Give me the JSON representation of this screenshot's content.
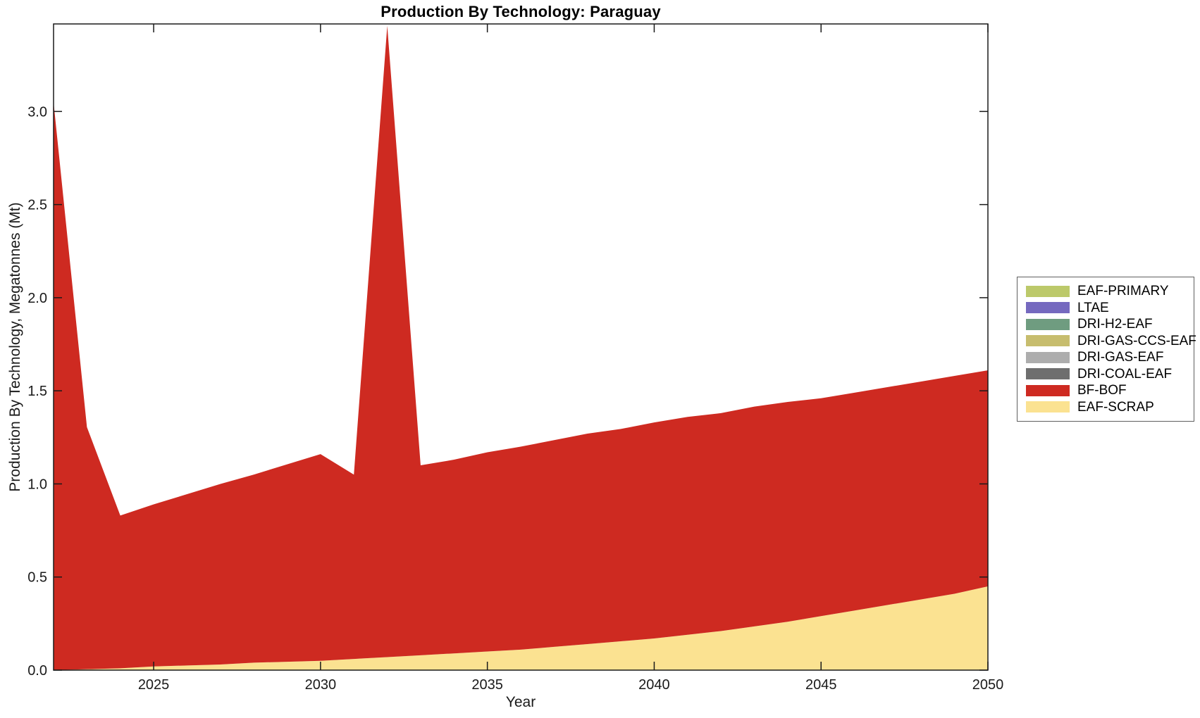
{
  "chart_data": {
    "type": "area",
    "stacked": true,
    "title": "Production By Technology: Paraguay",
    "xlabel": "Year",
    "ylabel": "Production By Technology, Megatonnes (Mt)",
    "grid": false,
    "legend_position": "outside-right",
    "xlim": [
      2022,
      2050
    ],
    "ylim": [
      0,
      3.47
    ],
    "x_ticks": [
      2025,
      2030,
      2035,
      2040,
      2045,
      2050
    ],
    "x_tick_labels": [
      "2025",
      "2030",
      "2035",
      "2040",
      "2045",
      "2050"
    ],
    "y_ticks": [
      0,
      0.5,
      1.0,
      1.5,
      2.0,
      2.5,
      3.0
    ],
    "y_tick_labels": [
      "0.0",
      "0.5",
      "1.0",
      "1.5",
      "2.0",
      "2.5",
      "3.0"
    ],
    "x": [
      2022,
      2023,
      2024,
      2025,
      2026,
      2027,
      2028,
      2029,
      2030,
      2031,
      2032,
      2033,
      2034,
      2035,
      2036,
      2037,
      2038,
      2039,
      2040,
      2041,
      2042,
      2043,
      2044,
      2045,
      2046,
      2047,
      2048,
      2049,
      2050
    ],
    "stack_order": "bottom-to-top: EAF-SCRAP, BF-BOF, DRI-COAL-EAF, DRI-GAS-EAF, DRI-GAS-CCS-EAF, DRI-H2-EAF, LTAE, EAF-PRIMARY (reverse of legend order)",
    "series": [
      {
        "name": "EAF-PRIMARY",
        "color": "#BCC96A",
        "values": [
          0,
          0,
          0,
          0,
          0,
          0,
          0,
          0,
          0,
          0,
          0,
          0,
          0,
          0,
          0,
          0,
          0,
          0,
          0,
          0,
          0,
          0,
          0,
          0,
          0,
          0,
          0,
          0,
          0
        ]
      },
      {
        "name": "LTAE",
        "color": "#7569BF",
        "values": [
          0,
          0,
          0,
          0,
          0,
          0,
          0,
          0,
          0,
          0,
          0,
          0,
          0,
          0,
          0,
          0,
          0,
          0,
          0,
          0,
          0,
          0,
          0,
          0,
          0,
          0,
          0,
          0,
          0
        ]
      },
      {
        "name": "DRI-H2-EAF",
        "color": "#6F9C80",
        "values": [
          0,
          0,
          0,
          0,
          0,
          0,
          0,
          0,
          0,
          0,
          0,
          0,
          0,
          0,
          0,
          0,
          0,
          0,
          0,
          0,
          0,
          0,
          0,
          0,
          0,
          0,
          0,
          0,
          0
        ]
      },
      {
        "name": "DRI-GAS-CCS-EAF",
        "color": "#C7BD6E",
        "values": [
          0,
          0,
          0,
          0,
          0,
          0,
          0,
          0,
          0,
          0,
          0,
          0,
          0,
          0,
          0,
          0,
          0,
          0,
          0,
          0,
          0,
          0,
          0,
          0,
          0,
          0,
          0,
          0,
          0
        ]
      },
      {
        "name": "DRI-GAS-EAF",
        "color": "#ADADAD",
        "values": [
          0,
          0,
          0,
          0,
          0,
          0,
          0,
          0,
          0,
          0,
          0,
          0,
          0,
          0,
          0,
          0,
          0,
          0,
          0,
          0,
          0,
          0,
          0,
          0,
          0,
          0,
          0,
          0,
          0
        ]
      },
      {
        "name": "DRI-COAL-EAF",
        "color": "#6E6E6E",
        "values": [
          0,
          0,
          0,
          0,
          0,
          0,
          0,
          0,
          0,
          0,
          0,
          0,
          0,
          0,
          0,
          0,
          0,
          0,
          0,
          0,
          0,
          0,
          0,
          0,
          0,
          0,
          0,
          0,
          0
        ]
      },
      {
        "name": "BF-BOF",
        "color": "#CE2A21",
        "values": [
          3.05,
          1.3,
          0.82,
          0.87,
          0.92,
          0.97,
          1.01,
          1.06,
          1.11,
          0.99,
          3.39,
          1.02,
          1.04,
          1.07,
          1.09,
          1.11,
          1.13,
          1.14,
          1.16,
          1.17,
          1.17,
          1.18,
          1.18,
          1.17,
          1.17,
          1.17,
          1.17,
          1.17,
          1.16
        ]
      },
      {
        "name": "EAF-SCRAP",
        "color": "#FBE291",
        "values": [
          0,
          0.005,
          0.01,
          0.02,
          0.025,
          0.03,
          0.04,
          0.045,
          0.05,
          0.06,
          0.07,
          0.08,
          0.09,
          0.1,
          0.11,
          0.125,
          0.14,
          0.155,
          0.17,
          0.19,
          0.21,
          0.235,
          0.26,
          0.29,
          0.32,
          0.35,
          0.38,
          0.41,
          0.45
        ]
      }
    ]
  },
  "style": {
    "axis_color": "#1a1a1a",
    "tick_label_color": "#1a1a1a",
    "background": "#ffffff",
    "legend_border": "#5f5f5f"
  }
}
